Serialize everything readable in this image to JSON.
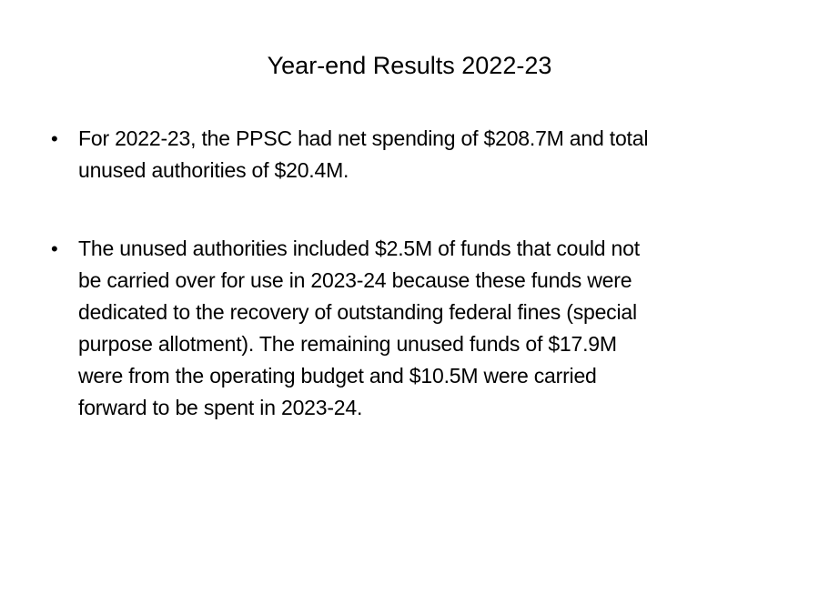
{
  "slide": {
    "title": "Year-end Results 2022-23",
    "bullets": [
      {
        "lines": [
          "For 2022-23, the PPSC had net spending of $208.7M and total",
          "unused authorities of $20.4M."
        ]
      },
      {
        "lines": [
          "The unused authorities included $2.5M of funds that could not",
          "be carried over for use in 2023-24 because these funds were",
          "dedicated to the recovery of outstanding federal fines (special",
          "purpose allotment). The remaining unused funds of $17.9M",
          "were from the operating budget and $10.5M were carried",
          "forward to be spent in 2023-24."
        ]
      }
    ],
    "bullet_glyph": "•"
  }
}
